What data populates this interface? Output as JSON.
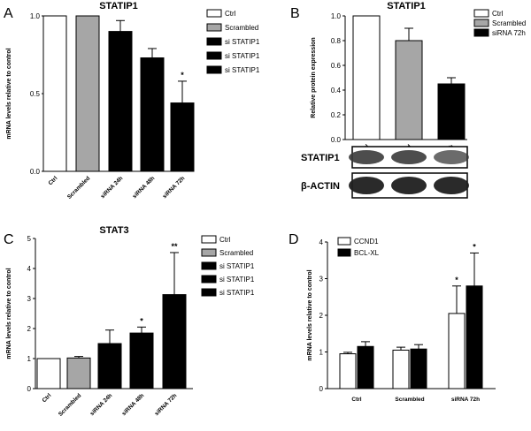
{
  "chart_data": [
    {
      "panel": "A",
      "type": "bar",
      "title": "STATIP1",
      "ylabel": "mRNA levels relative to control",
      "ylim": [
        0,
        1
      ],
      "yticks": [
        "0.0",
        "0.5",
        "1.0"
      ],
      "categories": [
        "Ctrl",
        "Scrambled",
        "siRNA 24h",
        "siRNA 48h",
        "siRNA 72h"
      ],
      "values": [
        1.0,
        1.0,
        0.9,
        0.73,
        0.44
      ],
      "errors": [
        0,
        0,
        0.07,
        0.06,
        0.14
      ],
      "colors": [
        "#ffffff",
        "#a6a6a6",
        "#000000",
        "#000000",
        "#000000"
      ],
      "annotations": [
        "",
        "",
        "",
        "",
        "*"
      ],
      "legend": [
        {
          "label": "Ctrl",
          "color": "#ffffff"
        },
        {
          "label": "Scrambled",
          "color": "#a6a6a6"
        },
        {
          "label": "si STATIP1",
          "color": "#000000"
        },
        {
          "label": "si STATIP1",
          "color": "#000000"
        },
        {
          "label": "si STATIP1",
          "color": "#000000"
        }
      ]
    },
    {
      "panel": "B",
      "type": "bar",
      "title": "STATIP1",
      "ylabel": "Relative protein expression",
      "ylim": [
        0,
        1
      ],
      "yticks": [
        "0.0",
        "0.2",
        "0.4",
        "0.6",
        "0.8",
        "1.0"
      ],
      "categories": [
        "Ctrl",
        "Scrambled",
        "siRNA 72h"
      ],
      "values": [
        1.0,
        0.8,
        0.45
      ],
      "errors": [
        0,
        0.1,
        0.05
      ],
      "colors": [
        "#ffffff",
        "#a6a6a6",
        "#000000"
      ],
      "legend": [
        {
          "label": "Ctrl",
          "color": "#ffffff"
        },
        {
          "label": "Scrambled",
          "color": "#a6a6a6"
        },
        {
          "label": "siRNA 72h",
          "color": "#000000"
        }
      ],
      "blots": [
        "STATIP1",
        "β-ACTIN"
      ]
    },
    {
      "panel": "C",
      "type": "bar",
      "title": "STAT3",
      "ylabel": "mRNA levels relative to control",
      "ylim": [
        0,
        5
      ],
      "yticks": [
        "0",
        "1",
        "2",
        "3",
        "4",
        "5"
      ],
      "categories": [
        "Ctrl",
        "Scrambled",
        "siRNA 24h",
        "siRNA 48h",
        "siRNA 72h"
      ],
      "values": [
        1.0,
        1.02,
        1.5,
        1.85,
        3.13
      ],
      "errors": [
        0,
        0.05,
        0.45,
        0.2,
        1.4
      ],
      "colors": [
        "#ffffff",
        "#a6a6a6",
        "#000000",
        "#000000",
        "#000000"
      ],
      "annotations": [
        "",
        "",
        "",
        "*",
        "**"
      ],
      "legend": [
        {
          "label": "Ctrl",
          "color": "#ffffff"
        },
        {
          "label": "Scrambled",
          "color": "#a6a6a6"
        },
        {
          "label": "si STATIP1",
          "color": "#000000"
        },
        {
          "label": "si STATIP1",
          "color": "#000000"
        },
        {
          "label": "si STATIP1",
          "color": "#000000"
        }
      ]
    },
    {
      "panel": "D",
      "type": "bar",
      "title": "",
      "ylabel": "mRNA levels relative to control",
      "ylim": [
        0,
        4
      ],
      "yticks": [
        "0",
        "1",
        "2",
        "3",
        "4"
      ],
      "categories": [
        "Ctrl",
        "Scrambled",
        "siRNA 72h"
      ],
      "series": [
        {
          "name": "CCND1",
          "color": "#ffffff",
          "values": [
            0.95,
            1.05,
            2.05
          ],
          "errors": [
            0.04,
            0.08,
            0.75
          ],
          "annotations": [
            "",
            "",
            "*"
          ]
        },
        {
          "name": "BCL-XL",
          "color": "#000000",
          "values": [
            1.15,
            1.08,
            2.8
          ],
          "errors": [
            0.13,
            0.12,
            0.9
          ],
          "annotations": [
            "",
            "",
            "*"
          ]
        }
      ]
    }
  ]
}
